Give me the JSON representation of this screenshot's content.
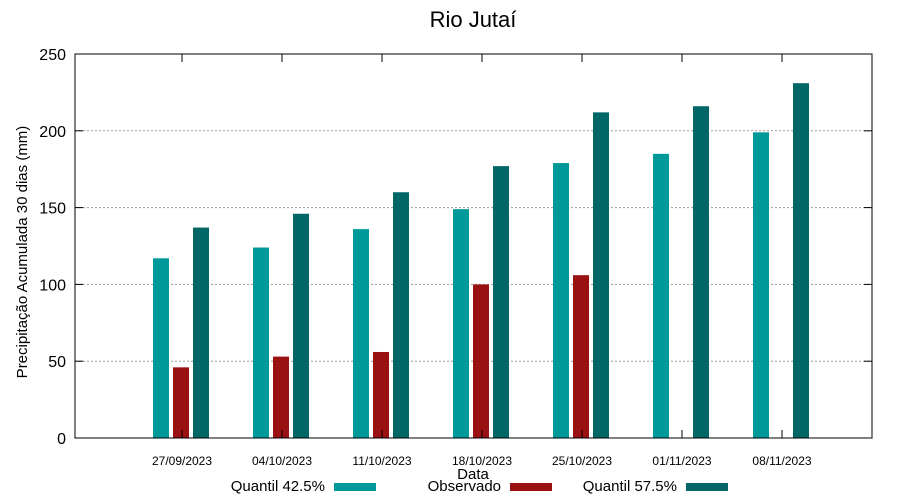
{
  "chart_data": {
    "type": "bar",
    "title": "Rio Jutaí",
    "xlabel": "Data",
    "ylabel": "Precipitação Acumulada 30 dias (mm)",
    "ylim": [
      0,
      250
    ],
    "yticks": [
      0,
      50,
      100,
      150,
      200,
      250
    ],
    "grid": true,
    "legend_position": "bottom",
    "categories": [
      "27/09/2023",
      "04/10/2023",
      "11/10/2023",
      "18/10/2023",
      "25/10/2023",
      "01/11/2023",
      "08/11/2023"
    ],
    "series": [
      {
        "name": "Quantil 42.5%",
        "color": "#009999",
        "values": [
          117,
          124,
          136,
          149,
          179,
          185,
          199
        ]
      },
      {
        "name": "Observado",
        "color": "#991111",
        "values": [
          46,
          53,
          56,
          100,
          106,
          null,
          null
        ]
      },
      {
        "name": "Quantil 57.5%",
        "color": "#006666",
        "values": [
          137,
          146,
          160,
          177,
          212,
          216,
          231
        ]
      }
    ]
  }
}
